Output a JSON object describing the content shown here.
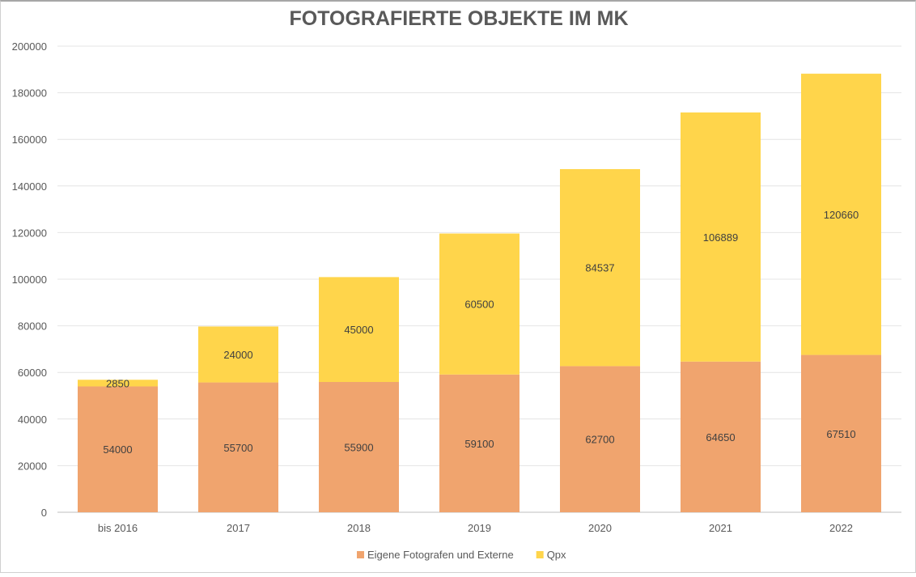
{
  "chart_data": {
    "type": "bar",
    "stacked": true,
    "title": "FOTOGRAFIERTE OBJEKTE IM MK",
    "xlabel": "",
    "ylabel": "",
    "categories": [
      "bis 2016",
      "2017",
      "2018",
      "2019",
      "2020",
      "2021",
      "2022"
    ],
    "series": [
      {
        "name": "Eigene Fotografen und Externe",
        "color": "#F0A46E",
        "values": [
          54000,
          55700,
          55900,
          59100,
          62700,
          64650,
          67510
        ]
      },
      {
        "name": "Qpx",
        "color": "#FFD54B",
        "values": [
          2850,
          24000,
          45000,
          60500,
          84537,
          106889,
          120660
        ]
      }
    ],
    "ylim": [
      0,
      200000
    ],
    "yticks": [
      0,
      20000,
      40000,
      60000,
      80000,
      100000,
      120000,
      140000,
      160000,
      180000,
      200000
    ],
    "grid": true,
    "legend": "bottom",
    "data_labels": true
  }
}
